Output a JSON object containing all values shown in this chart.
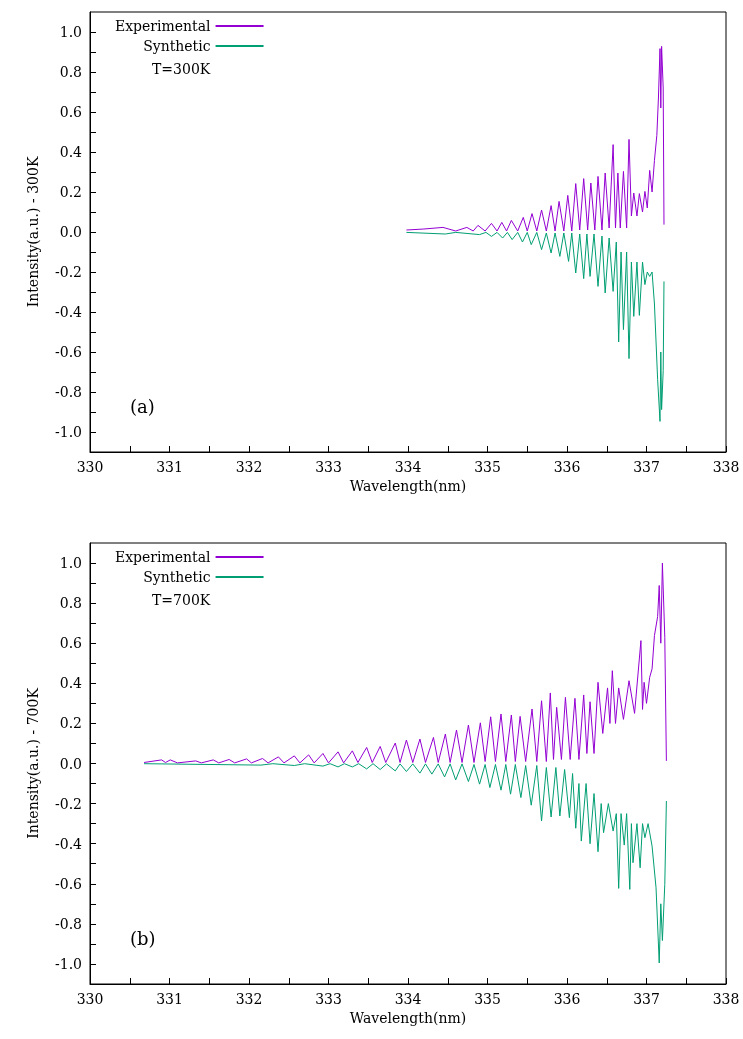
{
  "chart_data": [
    {
      "type": "line",
      "xlabel": "Wavelength(nm)",
      "ylabel": "Intensity(a.u.) - 300K",
      "annotations": [
        "T=300K",
        "(a)"
      ],
      "legend": "top left",
      "grid": false,
      "marker": "none",
      "line_style": "solid",
      "xlim": [
        330,
        338
      ],
      "xticks": [
        330,
        {
          "value": 330.5,
          "label": null
        },
        331,
        {
          "value": 331.5,
          "label": null
        },
        332,
        {
          "value": 332.5,
          "label": null
        },
        333,
        {
          "value": 333.5,
          "label": null
        },
        334,
        {
          "value": 334.5,
          "label": null
        },
        335,
        {
          "value": 335.5,
          "label": null
        },
        336,
        {
          "value": 336.5,
          "label": null
        },
        337,
        {
          "value": 337.5,
          "label": null
        },
        338
      ],
      "ylim": [
        -1.1,
        1.1
      ],
      "yticks": [
        {
          "value": -1,
          "label": "-1.0"
        },
        {
          "value": -0.9,
          "label": null
        },
        -0.8,
        {
          "value": -0.7,
          "label": null
        },
        -0.6,
        {
          "value": -0.5,
          "label": null
        },
        -0.4,
        {
          "value": -0.3,
          "label": null
        },
        -0.2,
        {
          "value": -0.1,
          "label": null
        },
        {
          "value": 0,
          "label": "0.0"
        },
        {
          "value": 0.1,
          "label": null
        },
        0.2,
        {
          "value": 0.3,
          "label": null
        },
        0.4,
        {
          "value": 0.5,
          "label": null
        },
        0.6,
        {
          "value": 0.7,
          "label": null
        },
        0.8,
        {
          "value": 0.9,
          "label": null
        },
        {
          "value": 1,
          "label": "1.0"
        }
      ],
      "series": [
        {
          "name": "Experimental",
          "color": "#9400d3",
          "x": [
            333.98,
            334.2,
            334.44,
            334.6,
            334.74,
            334.82,
            334.88,
            334.97,
            335.05,
            335.12,
            335.18,
            335.24,
            335.3,
            335.38,
            335.45,
            335.5,
            335.56,
            335.62,
            335.68,
            335.74,
            335.8,
            335.85,
            335.9,
            335.96,
            336.01,
            336.06,
            336.11,
            336.16,
            336.21,
            336.26,
            336.3,
            336.35,
            336.39,
            336.44,
            336.48,
            336.53,
            336.58,
            336.61,
            336.64,
            336.67,
            336.71,
            336.75,
            336.78,
            336.81,
            336.84,
            336.88,
            336.91,
            336.95,
            336.98,
            337.01,
            337.04,
            337.07,
            337.1,
            337.13,
            337.15,
            337.17,
            337.18,
            337.19,
            337.21,
            337.22
          ],
          "values": [
            0.01,
            0.015,
            0.023,
            0.005,
            0.023,
            0.005,
            0.033,
            0.005,
            0.043,
            0.005,
            0.048,
            0.005,
            0.058,
            0.005,
            0.073,
            0.005,
            0.092,
            0.005,
            0.11,
            0.005,
            0.132,
            0.005,
            0.153,
            0.005,
            0.183,
            0.005,
            0.242,
            0.01,
            0.267,
            0.01,
            0.245,
            0.01,
            0.278,
            0.01,
            0.295,
            0.02,
            0.437,
            0.02,
            0.295,
            0.02,
            0.303,
            0.02,
            0.463,
            0.08,
            0.195,
            0.08,
            0.192,
            0.1,
            0.203,
            0.12,
            0.308,
            0.2,
            0.358,
            0.483,
            0.67,
            0.917,
            0.62,
            0.928,
            0.72,
            0.037
          ]
        },
        {
          "name": "Synthetic",
          "color": "#009e73",
          "x": [
            333.98,
            334.47,
            334.6,
            334.9,
            334.98,
            335.05,
            335.12,
            335.19,
            335.25,
            335.31,
            335.38,
            335.44,
            335.5,
            335.55,
            335.62,
            335.68,
            335.74,
            335.8,
            335.85,
            335.91,
            335.96,
            336.02,
            336.06,
            336.11,
            336.16,
            336.21,
            336.25,
            336.29,
            336.34,
            336.39,
            336.44,
            336.48,
            336.53,
            336.58,
            336.62,
            336.65,
            336.68,
            336.71,
            336.75,
            336.78,
            336.81,
            336.84,
            336.88,
            336.91,
            336.95,
            336.98,
            337.01,
            337.04,
            337.07,
            337.1,
            337.14,
            337.17,
            337.18,
            337.19,
            337.21,
            337.22
          ],
          "values": [
            -0.002,
            -0.01,
            -0.002,
            -0.013,
            -0.002,
            -0.022,
            -0.002,
            -0.03,
            -0.002,
            -0.038,
            -0.002,
            -0.05,
            -0.002,
            -0.063,
            -0.002,
            -0.088,
            -0.005,
            -0.105,
            -0.005,
            -0.122,
            -0.005,
            -0.147,
            -0.005,
            -0.205,
            -0.01,
            -0.233,
            -0.01,
            -0.222,
            -0.01,
            -0.272,
            -0.02,
            -0.305,
            -0.03,
            -0.297,
            -0.05,
            -0.55,
            -0.1,
            -0.488,
            -0.1,
            -0.633,
            -0.15,
            -0.422,
            -0.15,
            -0.417,
            -0.15,
            -0.263,
            -0.2,
            -0.222,
            -0.2,
            -0.36,
            -0.738,
            -0.947,
            -0.6,
            -0.888,
            -0.693,
            -0.247
          ]
        }
      ]
    },
    {
      "type": "line",
      "xlabel": "Wavelength(nm)",
      "ylabel": "Intensity(a.u.) - 700K",
      "annotations": [
        "T=700K",
        "(b)"
      ],
      "legend": "top left",
      "grid": false,
      "marker": "none",
      "line_style": "solid",
      "xlim": [
        330,
        338
      ],
      "xticks": [
        330,
        {
          "value": 330.5,
          "label": null
        },
        331,
        {
          "value": 331.5,
          "label": null
        },
        332,
        {
          "value": 332.5,
          "label": null
        },
        333,
        {
          "value": 333.5,
          "label": null
        },
        334,
        {
          "value": 334.5,
          "label": null
        },
        335,
        {
          "value": 335.5,
          "label": null
        },
        336,
        {
          "value": 336.5,
          "label": null
        },
        337,
        {
          "value": 337.5,
          "label": null
        },
        338
      ],
      "ylim": [
        -1.1,
        1.1
      ],
      "yticks": [
        {
          "value": -1,
          "label": "-1.0"
        },
        {
          "value": -0.9,
          "label": null
        },
        -0.8,
        {
          "value": -0.7,
          "label": null
        },
        -0.6,
        {
          "value": -0.5,
          "label": null
        },
        -0.4,
        {
          "value": -0.3,
          "label": null
        },
        -0.2,
        {
          "value": -0.1,
          "label": null
        },
        {
          "value": 0,
          "label": "0.0"
        },
        {
          "value": 0.1,
          "label": null
        },
        0.2,
        {
          "value": 0.3,
          "label": null
        },
        0.4,
        {
          "value": 0.5,
          "label": null
        },
        0.6,
        {
          "value": 0.7,
          "label": null
        },
        0.8,
        {
          "value": 0.9,
          "label": null
        },
        {
          "value": 1,
          "label": "1.0"
        }
      ],
      "series": [
        {
          "name": "Experimental",
          "color": "#9400d3",
          "x": [
            330.68,
            330.9,
            330.95,
            331.01,
            331.1,
            331.33,
            331.4,
            331.55,
            331.62,
            331.75,
            331.82,
            331.97,
            332.03,
            332.17,
            332.24,
            332.37,
            332.44,
            332.57,
            332.64,
            332.75,
            332.82,
            332.93,
            333.0,
            333.12,
            333.19,
            333.3,
            333.37,
            333.48,
            333.55,
            333.65,
            333.72,
            333.84,
            333.9,
            333.98,
            334.06,
            334.15,
            334.22,
            334.32,
            334.38,
            334.47,
            334.53,
            334.61,
            334.68,
            334.76,
            334.83,
            334.91,
            334.97,
            335.04,
            335.1,
            335.17,
            335.23,
            335.3,
            335.35,
            335.41,
            335.48,
            335.56,
            335.62,
            335.68,
            335.74,
            335.79,
            335.83,
            335.87,
            335.93,
            335.98,
            336.04,
            336.1,
            336.15,
            336.21,
            336.25,
            336.29,
            336.34,
            336.39,
            336.45,
            336.51,
            336.54,
            336.57,
            336.61,
            336.65,
            336.71,
            336.78,
            336.85,
            336.93,
            336.95,
            336.97,
            337.0,
            337.04,
            337.07,
            337.1,
            337.14,
            337.16,
            337.18,
            337.2,
            337.23,
            337.25
          ],
          "values": [
            0.005,
            0.018,
            0.005,
            0.018,
            0.003,
            0.013,
            0.003,
            0.018,
            0.003,
            0.02,
            0.003,
            0.023,
            0.003,
            0.025,
            0.003,
            0.033,
            0.003,
            0.038,
            0.003,
            0.043,
            0.003,
            0.05,
            0.003,
            0.058,
            0.003,
            0.063,
            0.005,
            0.08,
            0.005,
            0.085,
            0.005,
            0.102,
            0.005,
            0.117,
            0.005,
            0.122,
            0.005,
            0.13,
            0.005,
            0.147,
            0.005,
            0.167,
            0.005,
            0.192,
            0.005,
            0.203,
            0.01,
            0.233,
            0.01,
            0.247,
            0.01,
            0.242,
            0.01,
            0.235,
            0.01,
            0.272,
            0.01,
            0.313,
            0.01,
            0.352,
            0.02,
            0.28,
            0.02,
            0.33,
            0.02,
            0.325,
            0.02,
            0.342,
            0.05,
            0.308,
            0.05,
            0.405,
            0.15,
            0.377,
            0.2,
            0.463,
            0.2,
            0.377,
            0.22,
            0.413,
            0.25,
            0.613,
            0.27,
            0.405,
            0.3,
            0.43,
            0.472,
            0.638,
            0.733,
            0.888,
            0.6,
            1.0,
            0.63,
            0.013
          ]
        },
        {
          "name": "Synthetic",
          "color": "#009e73",
          "x": [
            330.68,
            332.15,
            332.3,
            332.57,
            332.7,
            332.93,
            333.02,
            333.12,
            333.2,
            333.3,
            333.38,
            333.48,
            333.56,
            333.65,
            333.73,
            333.84,
            333.9,
            333.98,
            334.06,
            334.15,
            334.22,
            334.3,
            334.38,
            334.46,
            334.53,
            334.6,
            334.68,
            334.76,
            334.83,
            334.9,
            334.97,
            335.03,
            335.1,
            335.17,
            335.23,
            335.29,
            335.35,
            335.42,
            335.48,
            335.55,
            335.62,
            335.68,
            335.74,
            335.8,
            335.86,
            335.91,
            335.97,
            336.03,
            336.07,
            336.11,
            336.15,
            336.18,
            336.24,
            336.29,
            336.34,
            336.39,
            336.43,
            336.46,
            336.52,
            336.58,
            336.62,
            336.65,
            336.68,
            336.72,
            336.75,
            336.79,
            336.81,
            336.83,
            336.88,
            336.92,
            336.95,
            336.98,
            337.02,
            337.07,
            337.12,
            337.16,
            337.18,
            337.2,
            337.23,
            337.25
          ],
          "values": [
            -0.001,
            -0.008,
            -0.001,
            -0.01,
            -0.001,
            -0.013,
            -0.001,
            -0.017,
            -0.001,
            -0.017,
            -0.001,
            -0.027,
            -0.001,
            -0.03,
            -0.002,
            -0.037,
            -0.002,
            -0.04,
            -0.002,
            -0.048,
            -0.002,
            -0.053,
            -0.002,
            -0.067,
            -0.002,
            -0.082,
            -0.002,
            -0.09,
            -0.005,
            -0.103,
            -0.005,
            -0.12,
            -0.005,
            -0.133,
            -0.005,
            -0.153,
            -0.005,
            -0.17,
            -0.01,
            -0.208,
            -0.01,
            -0.287,
            -0.02,
            -0.267,
            -0.02,
            -0.262,
            -0.03,
            -0.27,
            -0.05,
            -0.323,
            -0.1,
            -0.387,
            -0.1,
            -0.4,
            -0.15,
            -0.44,
            -0.2,
            -0.345,
            -0.2,
            -0.337,
            -0.25,
            -0.623,
            -0.25,
            -0.407,
            -0.25,
            -0.628,
            -0.3,
            -0.495,
            -0.3,
            -0.52,
            -0.3,
            -0.37,
            -0.3,
            -0.412,
            -0.62,
            -0.995,
            -0.7,
            -0.883,
            -0.603,
            -0.187
          ]
        }
      ]
    }
  ]
}
